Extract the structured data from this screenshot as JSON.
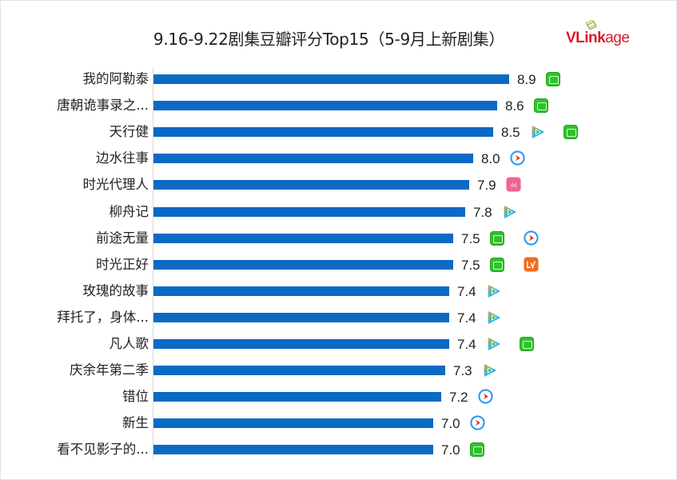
{
  "header": {
    "title": "9.16-9.22剧集豆瓣评分Top15（5-9月上新剧集）",
    "logo": {
      "text_bold": "VLink",
      "text_light": "age",
      "color": "#d91e26"
    }
  },
  "colors": {
    "bar": "#0a6ac4",
    "iqiyi": "#2ec32b",
    "youku": "#1e88e5",
    "mango": "#f26b1d",
    "bilibili": "#f06292"
  },
  "chart_data": {
    "type": "bar",
    "orientation": "horizontal",
    "title": "9.16-9.22剧集豆瓣评分Top15（5-9月上新剧集）",
    "xlabel": "",
    "ylabel": "",
    "grid": false,
    "legend": null,
    "categories": [
      "我的阿勒泰",
      "唐朝诡事录之...",
      "天行健",
      "边水往事",
      "时光代理人",
      "柳舟记",
      "前途无量",
      "时光正好",
      "玫瑰的故事",
      "拜托了，身体...",
      "凡人歌",
      "庆余年第二季",
      "错位",
      "新生",
      "看不见影子的..."
    ],
    "values": [
      8.9,
      8.6,
      8.5,
      8.0,
      7.9,
      7.8,
      7.5,
      7.5,
      7.4,
      7.4,
      7.4,
      7.3,
      7.2,
      7.0,
      7.0
    ],
    "value_labels": [
      "8.9",
      "8.6",
      "8.5",
      "8.0",
      "7.9",
      "7.8",
      "7.5",
      "7.5",
      "7.4",
      "7.4",
      "7.4",
      "7.3",
      "7.2",
      "7.0",
      "7.0"
    ],
    "platforms": [
      [
        "iqiyi"
      ],
      [
        "iqiyi"
      ],
      [
        "tencent",
        "iqiyi"
      ],
      [
        "youku"
      ],
      [
        "bilibili"
      ],
      [
        "tencent"
      ],
      [
        "iqiyi",
        "youku"
      ],
      [
        "iqiyi",
        "mango"
      ],
      [
        "tencent"
      ],
      [
        "tencent"
      ],
      [
        "tencent",
        "iqiyi"
      ],
      [
        "tencent"
      ],
      [
        "youku"
      ],
      [
        "youku"
      ],
      [
        "iqiyi"
      ]
    ],
    "xlim": [
      0,
      9
    ]
  }
}
